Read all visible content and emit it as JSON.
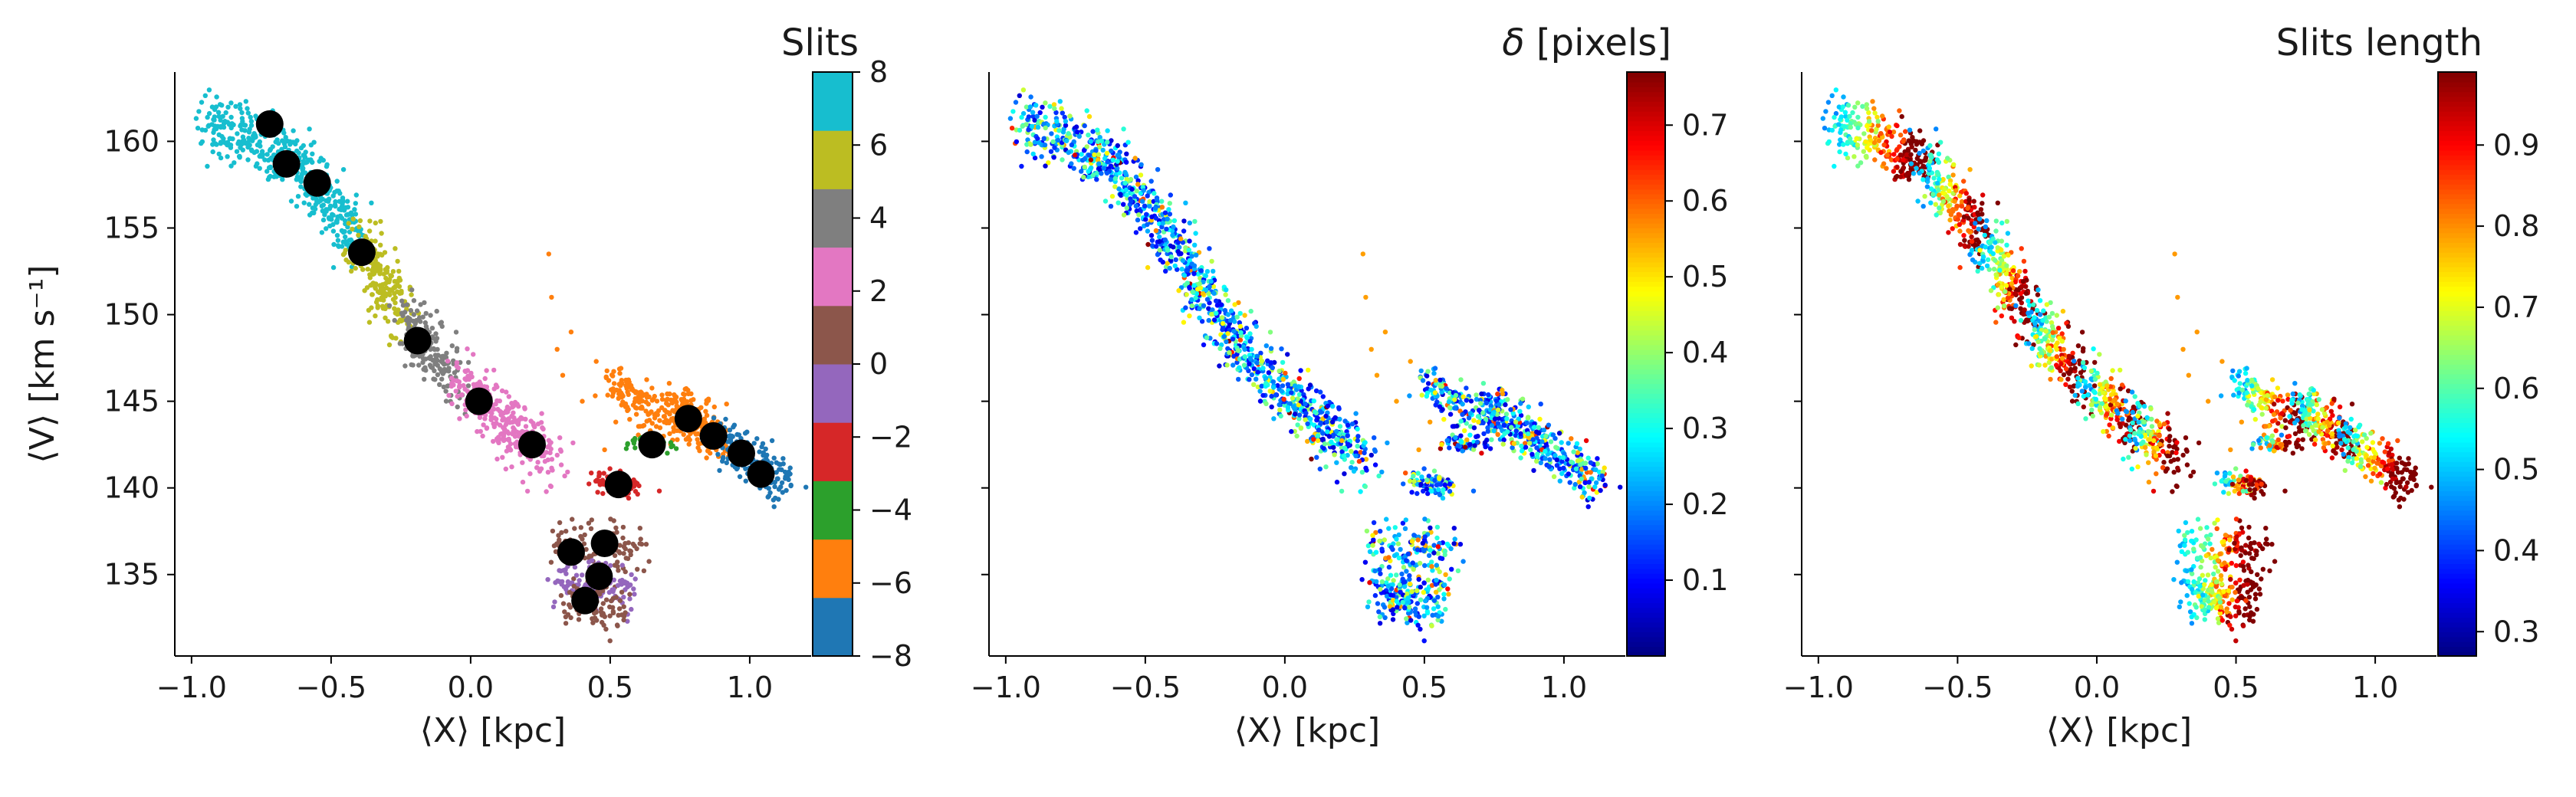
{
  "figure": {
    "background": "#ffffff"
  },
  "chart_data": [
    {
      "type": "scatter",
      "panel": "left",
      "xlabel": "⟨X⟩ [kpc]",
      "ylabel": "⟨V⟩ [km s⁻¹]",
      "xlim": [
        -1.06,
        1.22
      ],
      "ylim": [
        130.3,
        164.0
      ],
      "xticks": [
        -1.0,
        -0.5,
        0.0,
        0.5,
        1.0
      ],
      "xtick_labels": [
        "−1.0",
        "−0.5",
        "0.0",
        "0.5",
        "1.0"
      ],
      "yticks": [
        135,
        140,
        145,
        150,
        155,
        160
      ],
      "ytick_labels": [
        "135",
        "140",
        "145",
        "150",
        "155",
        "160"
      ],
      "colorbar": {
        "title": "Slits",
        "range": [
          -8,
          8
        ],
        "ticks": [
          -8,
          -6,
          -4,
          -2,
          0,
          2,
          4,
          6,
          8
        ],
        "tick_labels": [
          "−8",
          "−6",
          "−4",
          "−2",
          "0",
          "2",
          "4",
          "6",
          "8"
        ],
        "discrete_colors": [
          "#1f77b4",
          "#ff7f0e",
          "#2ca02c",
          "#d62728",
          "#9467bd",
          "#8c564b",
          "#e377c2",
          "#7f7f7f",
          "#bcbd22",
          "#17becf"
        ]
      },
      "slit_centers": {
        "marker_color": "#000000",
        "points": [
          {
            "x": -0.72,
            "y": 161.0
          },
          {
            "x": -0.66,
            "y": 158.7
          },
          {
            "x": -0.55,
            "y": 157.6
          },
          {
            "x": -0.39,
            "y": 153.6
          },
          {
            "x": -0.19,
            "y": 148.5
          },
          {
            "x": 0.03,
            "y": 145.0
          },
          {
            "x": 0.22,
            "y": 142.5
          },
          {
            "x": 0.53,
            "y": 140.2
          },
          {
            "x": 0.65,
            "y": 142.5
          },
          {
            "x": 0.78,
            "y": 144.0
          },
          {
            "x": 0.87,
            "y": 143.0
          },
          {
            "x": 0.97,
            "y": 142.0
          },
          {
            "x": 1.04,
            "y": 140.8
          },
          {
            "x": 0.36,
            "y": 136.3
          },
          {
            "x": 0.48,
            "y": 136.8
          },
          {
            "x": 0.46,
            "y": 134.9
          },
          {
            "x": 0.41,
            "y": 133.5
          }
        ]
      }
    },
    {
      "type": "scatter",
      "panel": "middle",
      "xlabel": "⟨X⟩ [kpc]",
      "xlim": [
        -1.06,
        1.22
      ],
      "ylim": [
        130.3,
        164.0
      ],
      "xticks": [
        -1.0,
        -0.5,
        0.0,
        0.5,
        1.0
      ],
      "xtick_labels": [
        "−1.0",
        "−0.5",
        "0.0",
        "0.5",
        "1.0"
      ],
      "yticks": [
        135,
        140,
        145,
        150,
        155,
        160
      ],
      "colorbar": {
        "title": "δ [pixels]",
        "colormap": "jet",
        "range": [
          0.0,
          0.77
        ],
        "ticks": [
          0.1,
          0.2,
          0.3,
          0.4,
          0.5,
          0.6,
          0.7
        ],
        "tick_labels": [
          "0.1",
          "0.2",
          "0.3",
          "0.4",
          "0.5",
          "0.6",
          "0.7"
        ]
      }
    },
    {
      "type": "scatter",
      "panel": "right",
      "xlabel": "⟨X⟩ [kpc]",
      "xlim": [
        -1.06,
        1.22
      ],
      "ylim": [
        130.3,
        164.0
      ],
      "xticks": [
        -1.0,
        -0.5,
        0.0,
        0.5,
        1.0
      ],
      "xtick_labels": [
        "−1.0",
        "−0.5",
        "0.0",
        "0.5",
        "1.0"
      ],
      "yticks": [
        135,
        140,
        145,
        150,
        155,
        160
      ],
      "colorbar": {
        "title": "Slits length",
        "colormap": "jet",
        "range": [
          0.27,
          0.99
        ],
        "ticks": [
          0.3,
          0.4,
          0.5,
          0.6,
          0.7,
          0.8,
          0.9
        ],
        "tick_labels": [
          "0.3",
          "0.4",
          "0.5",
          "0.6",
          "0.7",
          "0.8",
          "0.9"
        ]
      }
    }
  ]
}
